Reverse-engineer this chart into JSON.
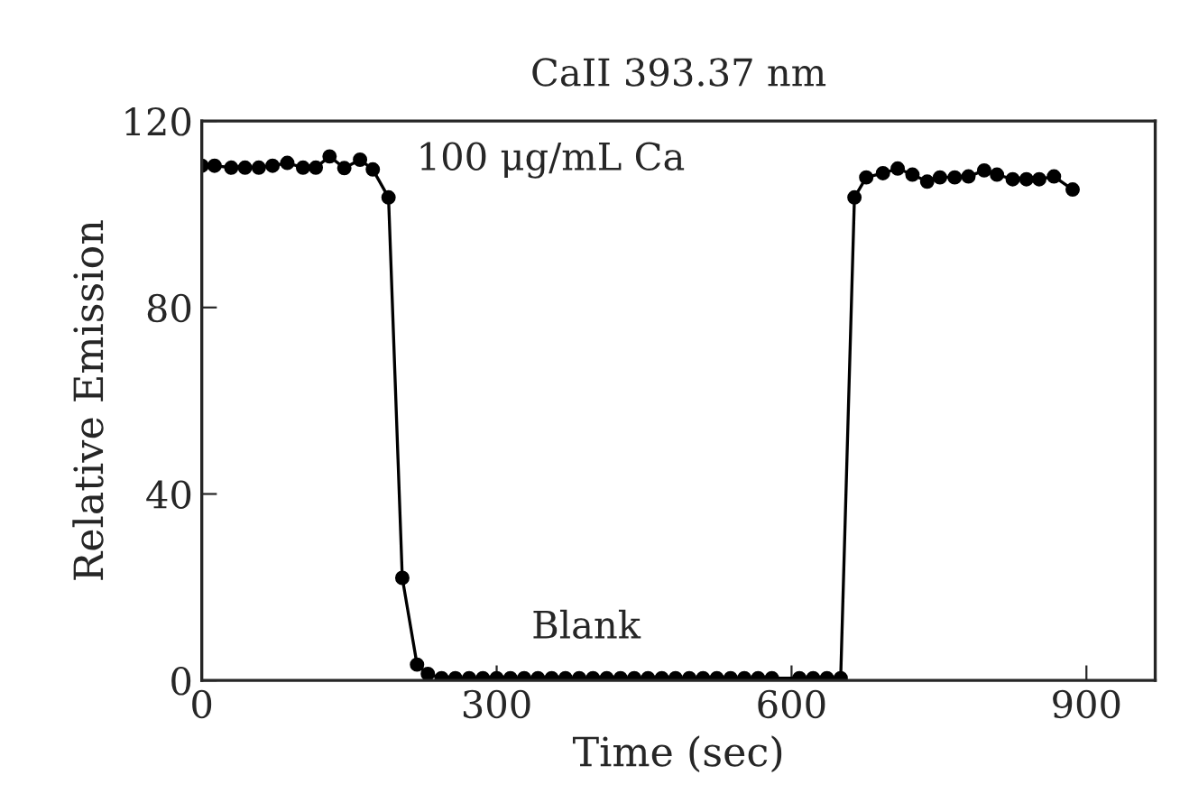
{
  "chart_data": {
    "type": "line",
    "title": "CaII 393.37 nm",
    "xlabel": "Time (sec)",
    "ylabel": "Relative Emission",
    "x": [
      0,
      13,
      30,
      44,
      58,
      72,
      87,
      103,
      116,
      130,
      145,
      161,
      174,
      190,
      204,
      219,
      230,
      244,
      258,
      272,
      286,
      300,
      314,
      328,
      342,
      356,
      370,
      384,
      398,
      412,
      426,
      440,
      454,
      468,
      482,
      496,
      510,
      524,
      538,
      552,
      566,
      580,
      608,
      622,
      636,
      650,
      664,
      676,
      693,
      708,
      723,
      738,
      751,
      766,
      780,
      796,
      809,
      825,
      839,
      852,
      867,
      886
    ],
    "series": [
      {
        "color": "#000000",
        "values": [
          110.4,
          110.4,
          110,
          110,
          110,
          110.4,
          111,
          110,
          110,
          112.4,
          109.9,
          111.7,
          109.6,
          103.6,
          22,
          3.4,
          1.4,
          0.5,
          0.5,
          0.5,
          0.5,
          0.5,
          0.5,
          0.5,
          0.5,
          0.5,
          0.5,
          0.5,
          0.5,
          0.5,
          0.5,
          0.5,
          0.5,
          0.5,
          0.5,
          0.5,
          0.5,
          0.5,
          0.5,
          0.5,
          0.5,
          0.5,
          0.5,
          0.5,
          0.5,
          0.5,
          103.6,
          107.9,
          108.8,
          109.8,
          108.5,
          107,
          107.9,
          107.9,
          108.1,
          109.4,
          108.5,
          107.5,
          107.5,
          107.5,
          108.1,
          105.3
        ]
      }
    ],
    "annotations": [
      "100 μg/mL Ca",
      "Blank"
    ],
    "xlim": [
      0,
      970
    ],
    "xticks": [
      0,
      300,
      600,
      900
    ],
    "ylim": [
      0,
      120
    ],
    "yticks": [
      0,
      40,
      80,
      120
    ],
    "marker": "circle",
    "line_style": "solid",
    "grid": false,
    "legend": false
  }
}
